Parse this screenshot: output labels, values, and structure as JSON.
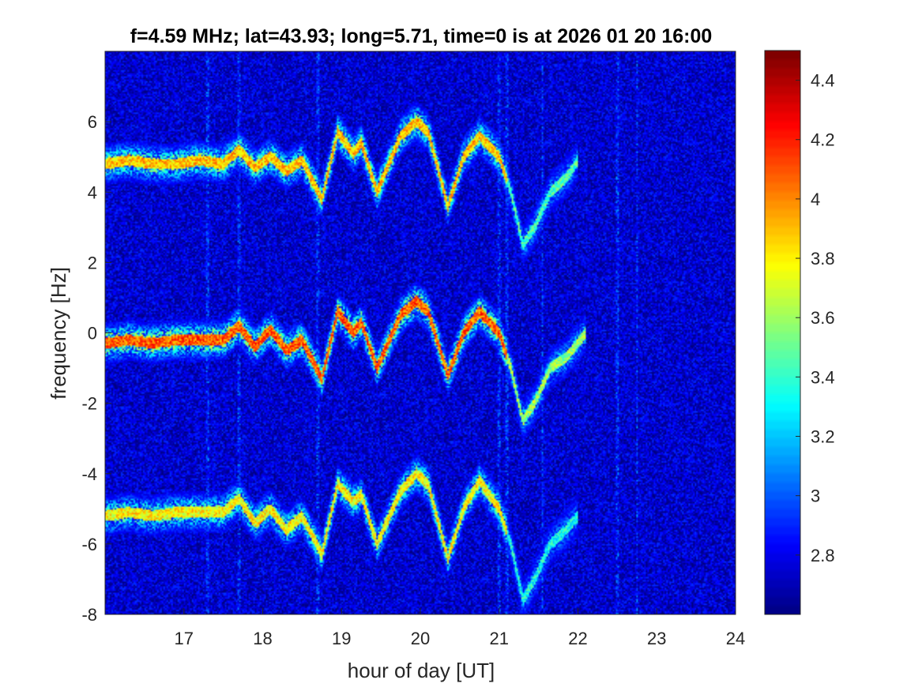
{
  "chart_data": {
    "type": "heatmap",
    "title": "f=4.59 MHz;  lat=43.93; long=5.71, time=0 is at 2026 01 20 16:00",
    "xlabel": "hour of day [UT]",
    "ylabel": "frequency [Hz]",
    "xlim": [
      16,
      24
    ],
    "ylim": [
      -8,
      8
    ],
    "xticks": [
      17,
      18,
      19,
      20,
      21,
      22,
      23,
      24
    ],
    "yticks": [
      -8,
      -6,
      -4,
      -2,
      0,
      2,
      4,
      6
    ],
    "colorbar": {
      "clim": [
        2.6,
        4.5
      ],
      "ticks": [
        2.8,
        3.0,
        3.2,
        3.4,
        3.6,
        3.8,
        4.0,
        4.2,
        4.4
      ],
      "tick_labels": [
        "2.8",
        "3",
        "3.2",
        "3.4",
        "3.6",
        "3.8",
        "4",
        "4.2",
        "4.4"
      ],
      "colormap": "jet"
    },
    "background_level": 2.75,
    "traces": [
      {
        "center_offset": 0,
        "points": [
          [
            16.0,
            -0.3
          ],
          [
            16.3,
            -0.2
          ],
          [
            16.6,
            -0.3
          ],
          [
            16.9,
            -0.2
          ],
          [
            17.2,
            -0.2
          ],
          [
            17.5,
            -0.2
          ],
          [
            17.7,
            0.2
          ],
          [
            17.9,
            -0.4
          ],
          [
            18.1,
            0.1
          ],
          [
            18.3,
            -0.5
          ],
          [
            18.5,
            -0.2
          ],
          [
            18.75,
            -1.3
          ],
          [
            18.95,
            0.6
          ],
          [
            19.15,
            0.0
          ],
          [
            19.25,
            0.3
          ],
          [
            19.45,
            -1.0
          ],
          [
            19.75,
            0.5
          ],
          [
            19.95,
            0.9
          ],
          [
            20.1,
            0.6
          ],
          [
            20.35,
            -1.2
          ],
          [
            20.55,
            0.0
          ],
          [
            20.75,
            0.6
          ],
          [
            21.0,
            0.0
          ],
          [
            21.15,
            -1.0
          ],
          [
            21.3,
            -2.5
          ],
          [
            21.45,
            -2.0
          ],
          [
            21.65,
            -1.0
          ],
          [
            21.85,
            -0.7
          ],
          [
            22.1,
            0.0
          ]
        ],
        "intensity": 4.3
      },
      {
        "center_offset": 5.1,
        "points": [
          [
            16.0,
            4.8
          ],
          [
            16.3,
            4.9
          ],
          [
            16.6,
            4.8
          ],
          [
            16.9,
            4.8
          ],
          [
            17.2,
            4.9
          ],
          [
            17.5,
            4.8
          ],
          [
            17.7,
            5.2
          ],
          [
            17.9,
            4.7
          ],
          [
            18.1,
            5.0
          ],
          [
            18.3,
            4.6
          ],
          [
            18.5,
            4.9
          ],
          [
            18.75,
            3.8
          ],
          [
            18.95,
            5.7
          ],
          [
            19.15,
            5.1
          ],
          [
            19.25,
            5.4
          ],
          [
            19.45,
            4.0
          ],
          [
            19.75,
            5.6
          ],
          [
            19.95,
            6.0
          ],
          [
            20.1,
            5.7
          ],
          [
            20.35,
            3.6
          ],
          [
            20.55,
            5.0
          ],
          [
            20.75,
            5.6
          ],
          [
            21.0,
            5.0
          ],
          [
            21.15,
            4.0
          ],
          [
            21.3,
            2.5
          ],
          [
            21.45,
            3.0
          ],
          [
            21.65,
            4.0
          ],
          [
            21.85,
            4.4
          ],
          [
            22.0,
            4.9
          ]
        ],
        "intensity": 4.1
      },
      {
        "center_offset": -5.1,
        "points": [
          [
            16.0,
            -5.2
          ],
          [
            16.3,
            -5.1
          ],
          [
            16.6,
            -5.2
          ],
          [
            16.9,
            -5.1
          ],
          [
            17.2,
            -5.1
          ],
          [
            17.5,
            -5.1
          ],
          [
            17.7,
            -4.7
          ],
          [
            17.9,
            -5.4
          ],
          [
            18.1,
            -5.0
          ],
          [
            18.3,
            -5.6
          ],
          [
            18.5,
            -5.2
          ],
          [
            18.75,
            -6.3
          ],
          [
            18.95,
            -4.3
          ],
          [
            19.15,
            -4.8
          ],
          [
            19.25,
            -4.6
          ],
          [
            19.45,
            -6.0
          ],
          [
            19.75,
            -4.5
          ],
          [
            19.95,
            -4.0
          ],
          [
            20.1,
            -4.3
          ],
          [
            20.35,
            -6.4
          ],
          [
            20.55,
            -5.0
          ],
          [
            20.75,
            -4.2
          ],
          [
            21.0,
            -5.0
          ],
          [
            21.15,
            -6.0
          ],
          [
            21.3,
            -7.6
          ],
          [
            21.45,
            -7.0
          ],
          [
            21.65,
            -6.0
          ],
          [
            21.85,
            -5.6
          ],
          [
            22.0,
            -5.2
          ]
        ],
        "intensity": 4.0
      }
    ],
    "vertical_stripes": [
      17.3,
      17.7,
      18.7,
      21.0,
      21.1,
      21.55,
      22.5,
      22.75
    ]
  }
}
